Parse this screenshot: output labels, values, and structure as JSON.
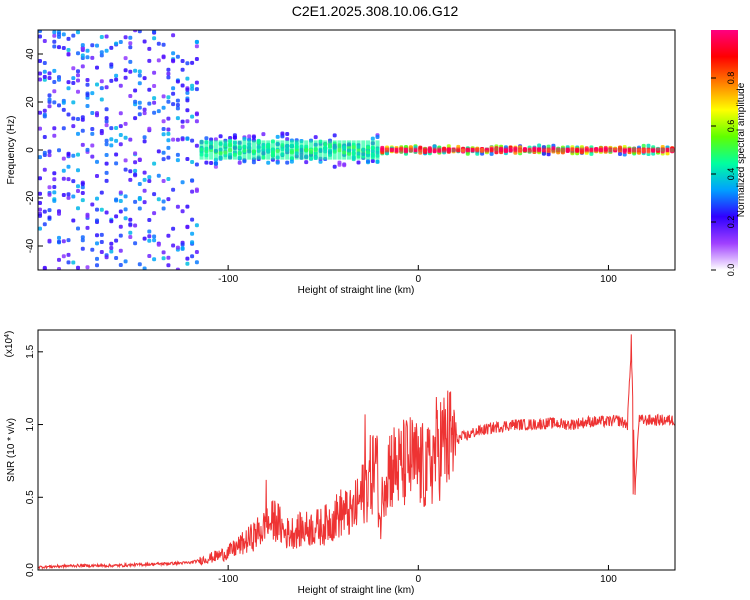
{
  "figure_title": "C2E1.2025.308.10.06.G12",
  "chart_data": [
    {
      "type": "heatmap",
      "title": "C2E1.2025.308.10.06.G12",
      "xlabel": "Height of straight line (km)",
      "ylabel": "Frequency (Hz)",
      "xlim": [
        -200,
        135
      ],
      "ylim": [
        -50,
        50
      ],
      "xticks": [
        -100,
        0,
        100
      ],
      "xtick_labels": [
        "-100",
        "0",
        "100"
      ],
      "yticks": [
        -40,
        -20,
        0,
        20,
        40
      ],
      "ytick_labels": [
        "-40",
        "-20",
        "0",
        "20",
        "40"
      ],
      "colorbar": {
        "label": "Normalized spectral amplitude",
        "range": [
          0,
          1
        ],
        "ticks": [
          0.0,
          0.2,
          0.4,
          0.6,
          0.8
        ],
        "tick_labels": [
          "0.0",
          "0.2",
          "0.4",
          "0.6",
          "0.8"
        ],
        "colormap": [
          "#ffffff",
          "#a040ff",
          "#3000ff",
          "#00a0ff",
          "#00ffa0",
          "#60ff00",
          "#ffff00",
          "#ff8000",
          "#ff0000",
          "#ff0080"
        ]
      },
      "regions": [
        {
          "x_range": [
            -200,
            -115
          ],
          "description_level": 0.25,
          "spread_hz": 50
        },
        {
          "x_range": [
            -115,
            -20
          ],
          "description_level": 0.45,
          "spread_hz": 8
        },
        {
          "x_range": [
            -20,
            135
          ],
          "description_level": 0.95,
          "spread_hz": 2
        }
      ],
      "grid": false
    },
    {
      "type": "line",
      "xlabel": "Height of straight line (km)",
      "ylabel": "SNR (10 * v/v)",
      "y_multiplier": "(x10^4)",
      "xlim": [
        -200,
        135
      ],
      "ylim": [
        0,
        1.65
      ],
      "xticks": [
        -100,
        0,
        100
      ],
      "xtick_labels": [
        "-100",
        "0",
        "100"
      ],
      "yticks": [
        0.0,
        0.5,
        1.0,
        1.5
      ],
      "ytick_labels": [
        "0.0",
        "0.5",
        "1.0",
        "1.5"
      ],
      "line_color": "#ee3333",
      "series": [
        {
          "x": [
            -200,
            -180,
            -160,
            -140,
            -120,
            -110,
            -100,
            -90,
            -80,
            -75,
            -70,
            -60,
            -50,
            -45,
            -40,
            -35,
            -30,
            -25,
            -22,
            -20,
            -18,
            -15,
            -10,
            -5,
            0,
            5,
            10,
            15,
            20,
            25,
            30,
            40,
            50,
            60,
            70,
            80,
            90,
            100,
            105,
            110,
            112,
            114,
            116,
            120,
            130,
            135
          ],
          "values": [
            0.02,
            0.03,
            0.03,
            0.04,
            0.05,
            0.08,
            0.12,
            0.2,
            0.3,
            0.35,
            0.25,
            0.28,
            0.3,
            0.35,
            0.4,
            0.38,
            0.5,
            0.65,
            0.75,
            0.3,
            0.65,
            0.72,
            0.7,
            0.75,
            0.72,
            0.68,
            0.85,
            0.88,
            0.9,
            0.92,
            0.95,
            0.98,
            1.0,
            1.0,
            1.01,
            1.0,
            1.02,
            1.02,
            1.03,
            1.0,
            1.55,
            0.55,
            1.03,
            1.03,
            1.03,
            1.03
          ]
        }
      ],
      "peaks": [
        {
          "x": 112,
          "value": 1.62
        },
        {
          "x": 113,
          "value": 0.52
        },
        {
          "x": -28,
          "value": 1.07
        },
        {
          "x": 10,
          "value": 1.1
        },
        {
          "x": -80,
          "value": 0.62
        }
      ],
      "grid": false
    }
  ]
}
